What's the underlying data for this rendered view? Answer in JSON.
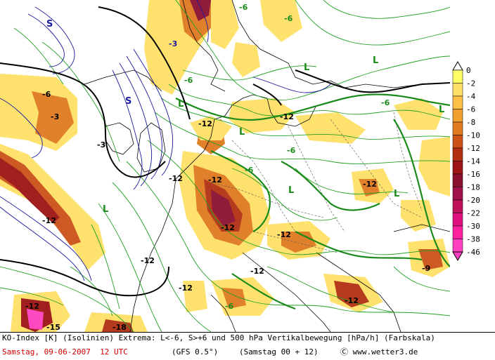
{
  "footer": {
    "line1": "KO-Index [K] (Isolinien) Extrema: L<-6, S>+6 und 500 hPa Vertikalbewegung [hPa/h] (Farbskala)",
    "date": "Samstag, 09-06-2007  12 UTC",
    "model": "(GFS 0.5°)",
    "run": "(Samstag 00 + 12)",
    "copyright": "Ⓒ www.wetter3.de"
  },
  "colorbar": {
    "ticks": [
      "0",
      "-2",
      "-4",
      "-6",
      "-8",
      "-10",
      "-12",
      "-14",
      "-16",
      "-18",
      "-20",
      "-22",
      "-30",
      "-38",
      "-46"
    ],
    "colors": [
      "#ffff66",
      "#ffe066",
      "#ffc04a",
      "#f0a030",
      "#e07a20",
      "#cc5218",
      "#b23012",
      "#9c1414",
      "#8a1030",
      "#a0104a",
      "#c0105a",
      "#e01080",
      "#ff20a0",
      "#ff40c0"
    ]
  },
  "map": {
    "labels": [
      {
        "text": "S"
      },
      {
        "text": "-3"
      },
      {
        "text": "S"
      },
      {
        "text": "-6"
      },
      {
        "text": "L"
      },
      {
        "text": "L"
      },
      {
        "text": "-12"
      },
      {
        "text": "-12"
      },
      {
        "text": "-12"
      },
      {
        "text": "-6"
      },
      {
        "text": "-6"
      },
      {
        "text": "L"
      },
      {
        "text": "-12"
      },
      {
        "text": "-12"
      },
      {
        "text": "-12"
      },
      {
        "text": "-12"
      },
      {
        "text": "-12"
      },
      {
        "text": "-6"
      },
      {
        "text": "L"
      },
      {
        "text": "L"
      },
      {
        "text": "L"
      },
      {
        "text": "-12"
      },
      {
        "text": "-12"
      },
      {
        "text": "-9"
      },
      {
        "text": "L"
      },
      {
        "text": "L"
      },
      {
        "text": "-12"
      },
      {
        "text": "-12"
      },
      {
        "text": "-12"
      },
      {
        "text": "-6"
      },
      {
        "text": "-3"
      },
      {
        "text": "-6"
      },
      {
        "text": "-6"
      },
      {
        "text": "-6"
      },
      {
        "text": "-15"
      },
      {
        "text": "-18"
      },
      {
        "text": "-3"
      }
    ]
  }
}
